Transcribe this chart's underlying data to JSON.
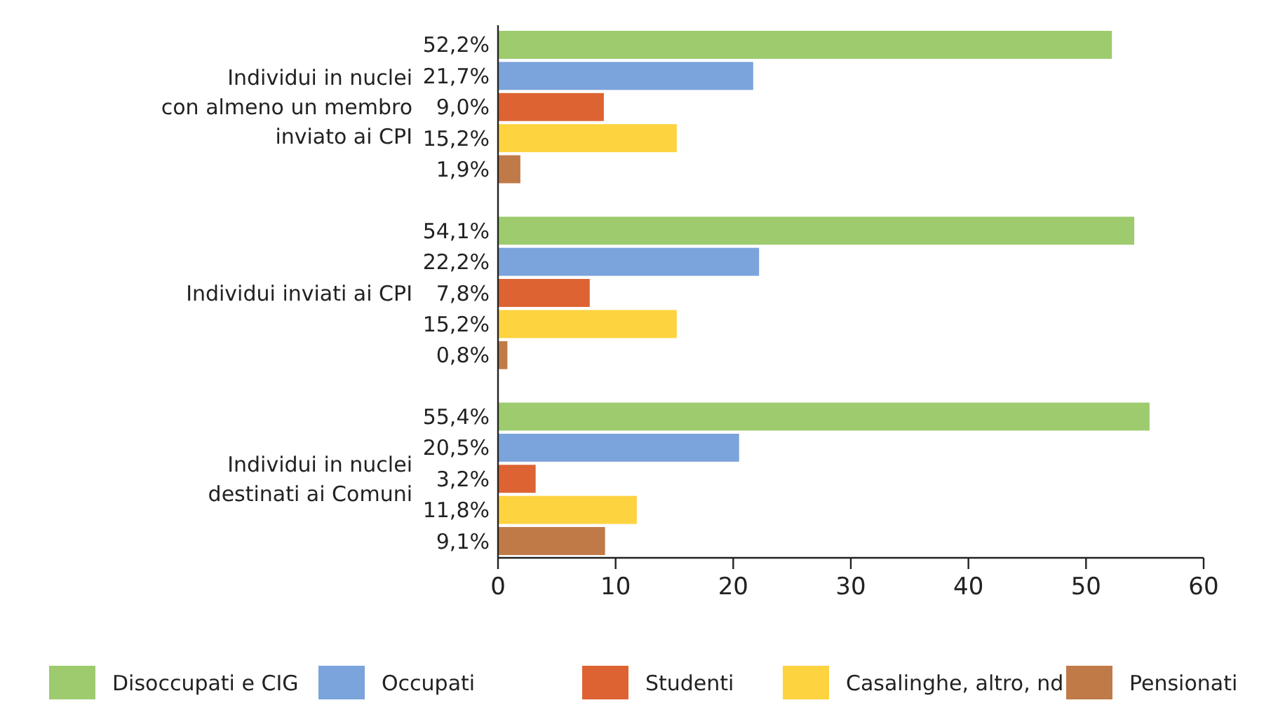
{
  "chart_data": {
    "type": "bar",
    "orientation": "horizontal",
    "categories": [
      "Individui in nuclei\ncon almeno un membro\ninviato ai CPI",
      "Individui inviati ai CPI",
      "Individui in nuclei\ndestinati ai Comuni"
    ],
    "series": [
      {
        "name": "Disoccupati e CIG",
        "color": "#9dcb6e",
        "values": [
          52.2,
          54.1,
          55.4
        ],
        "value_labels": [
          "52,2%",
          "54,1%",
          "55,4%"
        ]
      },
      {
        "name": "Occupati",
        "color": "#7ba3dc",
        "values": [
          21.7,
          22.2,
          20.5
        ],
        "value_labels": [
          "21,7%",
          "22,2%",
          "20,5%"
        ]
      },
      {
        "name": "Studenti",
        "color": "#dd6332",
        "values": [
          9.0,
          7.8,
          3.2
        ],
        "value_labels": [
          "9,0%",
          "7,8%",
          "3,2%"
        ]
      },
      {
        "name": "Casalinghe, altro, nd",
        "color": "#fdd33f",
        "values": [
          15.2,
          15.2,
          11.8
        ],
        "value_labels": [
          "15,2%",
          "15,2%",
          "11,8%"
        ]
      },
      {
        "name": "Pensionati",
        "color": "#c07a47",
        "values": [
          1.9,
          0.8,
          9.1
        ],
        "value_labels": [
          "1,9%",
          "0,8%",
          "9,1%"
        ]
      }
    ],
    "xlim": [
      0,
      60
    ],
    "xticks": [
      0,
      10,
      20,
      30,
      40,
      50,
      60
    ],
    "grid": false,
    "legend": "bottom"
  }
}
